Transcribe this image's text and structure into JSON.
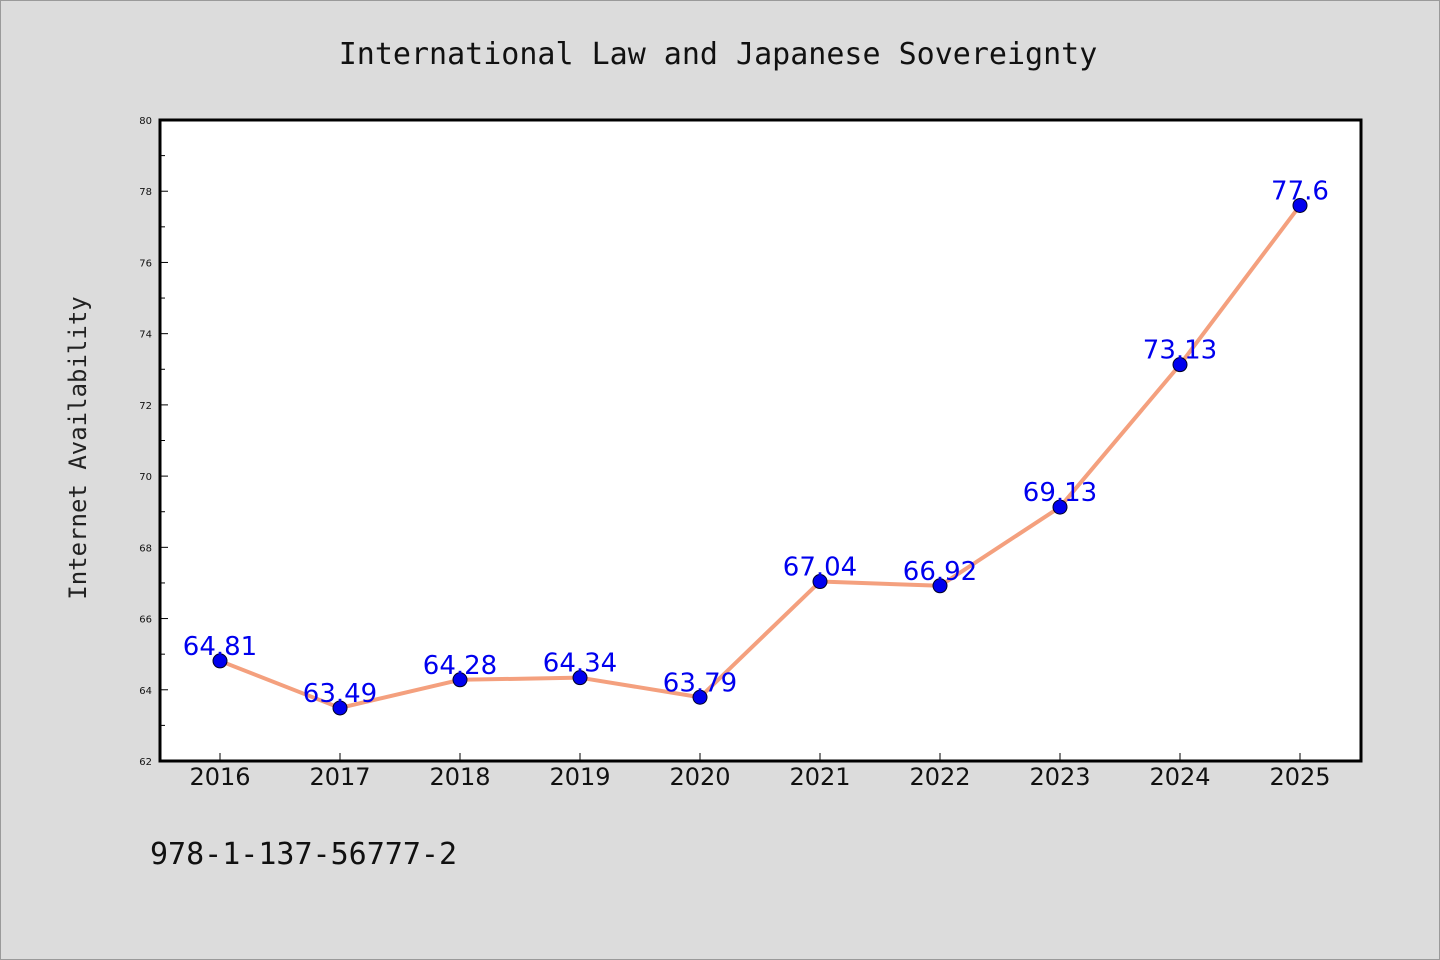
{
  "chart_data": {
    "type": "line",
    "title": "International Law and Japanese Sovereignty",
    "xlabel": "",
    "ylabel": "Internet Availability",
    "categories": [
      "2016",
      "2017",
      "2018",
      "2019",
      "2020",
      "2021",
      "2022",
      "2023",
      "2024",
      "2025"
    ],
    "series": [
      {
        "values": [
          64.81,
          63.49,
          64.28,
          64.34,
          63.79,
          67.04,
          66.92,
          69.13,
          73.13,
          77.6
        ],
        "data_labels": [
          "64.81",
          "63.49",
          "64.28",
          "64.34",
          "63.79",
          "67.04",
          "66.92",
          "69.13",
          "73.13",
          "77.6"
        ]
      }
    ],
    "ylim": [
      62,
      80
    ],
    "yticks": [
      "62",
      "64",
      "66",
      "68",
      "70",
      "72",
      "74",
      "76",
      "78",
      "80"
    ],
    "grid": false,
    "line_color": "#f4a07e",
    "marker_color": "#0000ee",
    "label_color": "#0000ee"
  },
  "footer": {
    "isbn": "978-1-137-56777-2"
  }
}
